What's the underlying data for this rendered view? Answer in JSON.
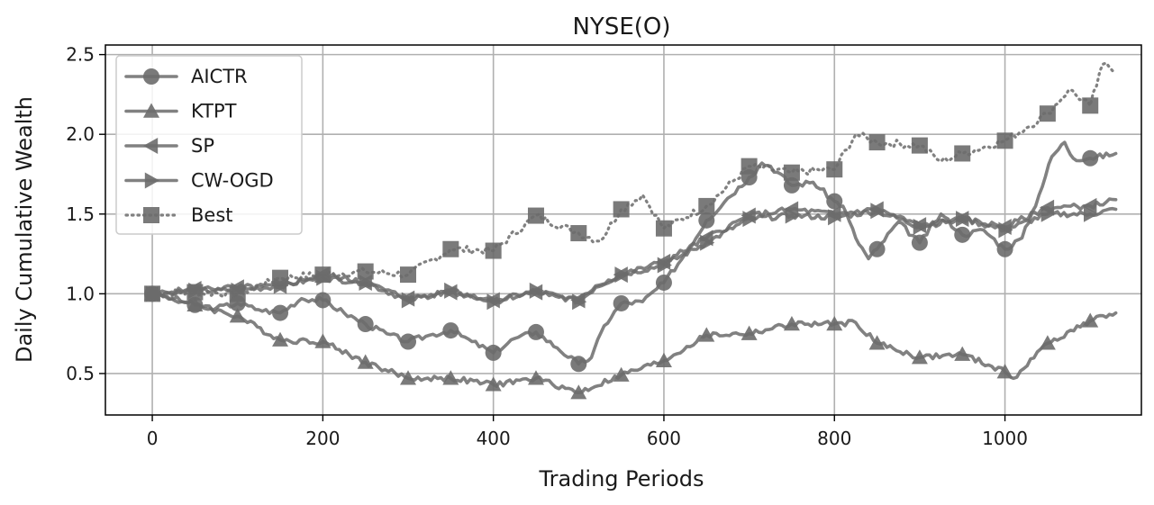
{
  "chart_data": {
    "type": "line",
    "title": "NYSE(O)",
    "xlabel": "Trading Periods",
    "ylabel": "Daily Cumulative Wealth",
    "xlim": [
      -55,
      1160
    ],
    "ylim": [
      0.24,
      2.56
    ],
    "xticks": [
      0,
      200,
      400,
      600,
      800,
      1000
    ],
    "yticks": [
      0.5,
      1.0,
      1.5,
      2.0,
      2.5
    ],
    "xtick_labels": [
      "0",
      "200",
      "400",
      "600",
      "800",
      "1000"
    ],
    "ytick_labels": [
      "0.5",
      "1.0",
      "1.5",
      "2.0",
      "2.5"
    ],
    "grid": true,
    "legend_position": "top-left",
    "line_color": "#6b6b6b",
    "series": [
      {
        "name": "AICTR",
        "marker": "circle",
        "style": "solid",
        "x": [
          0,
          25,
          50,
          75,
          100,
          125,
          150,
          175,
          200,
          225,
          250,
          275,
          300,
          325,
          350,
          375,
          400,
          425,
          450,
          475,
          500,
          515,
          530,
          550,
          575,
          600,
          625,
          650,
          675,
          700,
          715,
          725,
          750,
          775,
          800,
          810,
          825,
          840,
          850,
          875,
          900,
          925,
          950,
          975,
          1000,
          1020,
          1040,
          1055,
          1070,
          1080,
          1100,
          1130
        ],
        "y": [
          1.0,
          0.97,
          0.93,
          0.91,
          0.94,
          0.9,
          0.88,
          0.97,
          0.96,
          0.88,
          0.81,
          0.75,
          0.7,
          0.74,
          0.77,
          0.7,
          0.63,
          0.72,
          0.76,
          0.66,
          0.56,
          0.6,
          0.8,
          0.94,
          0.95,
          1.07,
          1.25,
          1.46,
          1.6,
          1.73,
          1.82,
          1.8,
          1.68,
          1.7,
          1.58,
          1.55,
          1.35,
          1.22,
          1.28,
          1.45,
          1.32,
          1.5,
          1.37,
          1.4,
          1.28,
          1.35,
          1.62,
          1.86,
          1.95,
          1.85,
          1.85,
          1.88
        ]
      },
      {
        "name": "KTPT",
        "marker": "triangle-up",
        "style": "solid",
        "x": [
          0,
          50,
          100,
          150,
          200,
          250,
          300,
          350,
          400,
          450,
          500,
          550,
          600,
          650,
          700,
          750,
          800,
          825,
          850,
          900,
          950,
          1000,
          1010,
          1050,
          1100,
          1130
        ],
        "y": [
          1.0,
          0.93,
          0.86,
          0.71,
          0.7,
          0.57,
          0.47,
          0.47,
          0.43,
          0.47,
          0.38,
          0.49,
          0.58,
          0.74,
          0.75,
          0.81,
          0.81,
          0.82,
          0.69,
          0.6,
          0.62,
          0.51,
          0.47,
          0.69,
          0.83,
          0.88
        ]
      },
      {
        "name": "SP",
        "marker": "triangle-left",
        "style": "solid",
        "x": [
          0,
          50,
          100,
          150,
          200,
          250,
          300,
          350,
          400,
          450,
          500,
          520,
          550,
          600,
          650,
          700,
          750,
          800,
          850,
          900,
          950,
          1000,
          1050,
          1100,
          1130
        ],
        "y": [
          1.0,
          1.03,
          1.04,
          1.05,
          1.12,
          1.07,
          0.97,
          1.01,
          0.96,
          1.01,
          0.96,
          1.05,
          1.12,
          1.2,
          1.35,
          1.49,
          1.53,
          1.5,
          1.53,
          1.43,
          1.47,
          1.42,
          1.54,
          1.55,
          1.59
        ]
      },
      {
        "name": "CW-OGD",
        "marker": "triangle-right",
        "style": "solid",
        "x": [
          0,
          50,
          100,
          150,
          200,
          250,
          300,
          350,
          400,
          450,
          500,
          520,
          550,
          600,
          650,
          700,
          750,
          800,
          850,
          900,
          950,
          1000,
          1050,
          1100,
          1130
        ],
        "y": [
          1.0,
          1.02,
          1.02,
          1.05,
          1.1,
          1.07,
          0.96,
          1.02,
          0.95,
          1.02,
          0.95,
          1.04,
          1.12,
          1.18,
          1.32,
          1.47,
          1.49,
          1.48,
          1.52,
          1.42,
          1.47,
          1.4,
          1.5,
          1.5,
          1.53
        ]
      },
      {
        "name": "Best",
        "marker": "square",
        "style": "dotted",
        "x": [
          0,
          50,
          100,
          150,
          200,
          250,
          300,
          350,
          400,
          450,
          500,
          525,
          550,
          575,
          600,
          650,
          700,
          750,
          800,
          825,
          850,
          900,
          925,
          950,
          1000,
          1025,
          1050,
          1075,
          1100,
          1115,
          1130
        ],
        "y": [
          1.0,
          1.01,
          1.0,
          1.1,
          1.12,
          1.14,
          1.12,
          1.28,
          1.27,
          1.49,
          1.38,
          1.33,
          1.53,
          1.62,
          1.41,
          1.55,
          1.8,
          1.76,
          1.78,
          2.0,
          1.95,
          1.93,
          1.83,
          1.88,
          1.96,
          2.04,
          2.13,
          2.28,
          2.18,
          2.44,
          2.41
        ]
      }
    ]
  }
}
